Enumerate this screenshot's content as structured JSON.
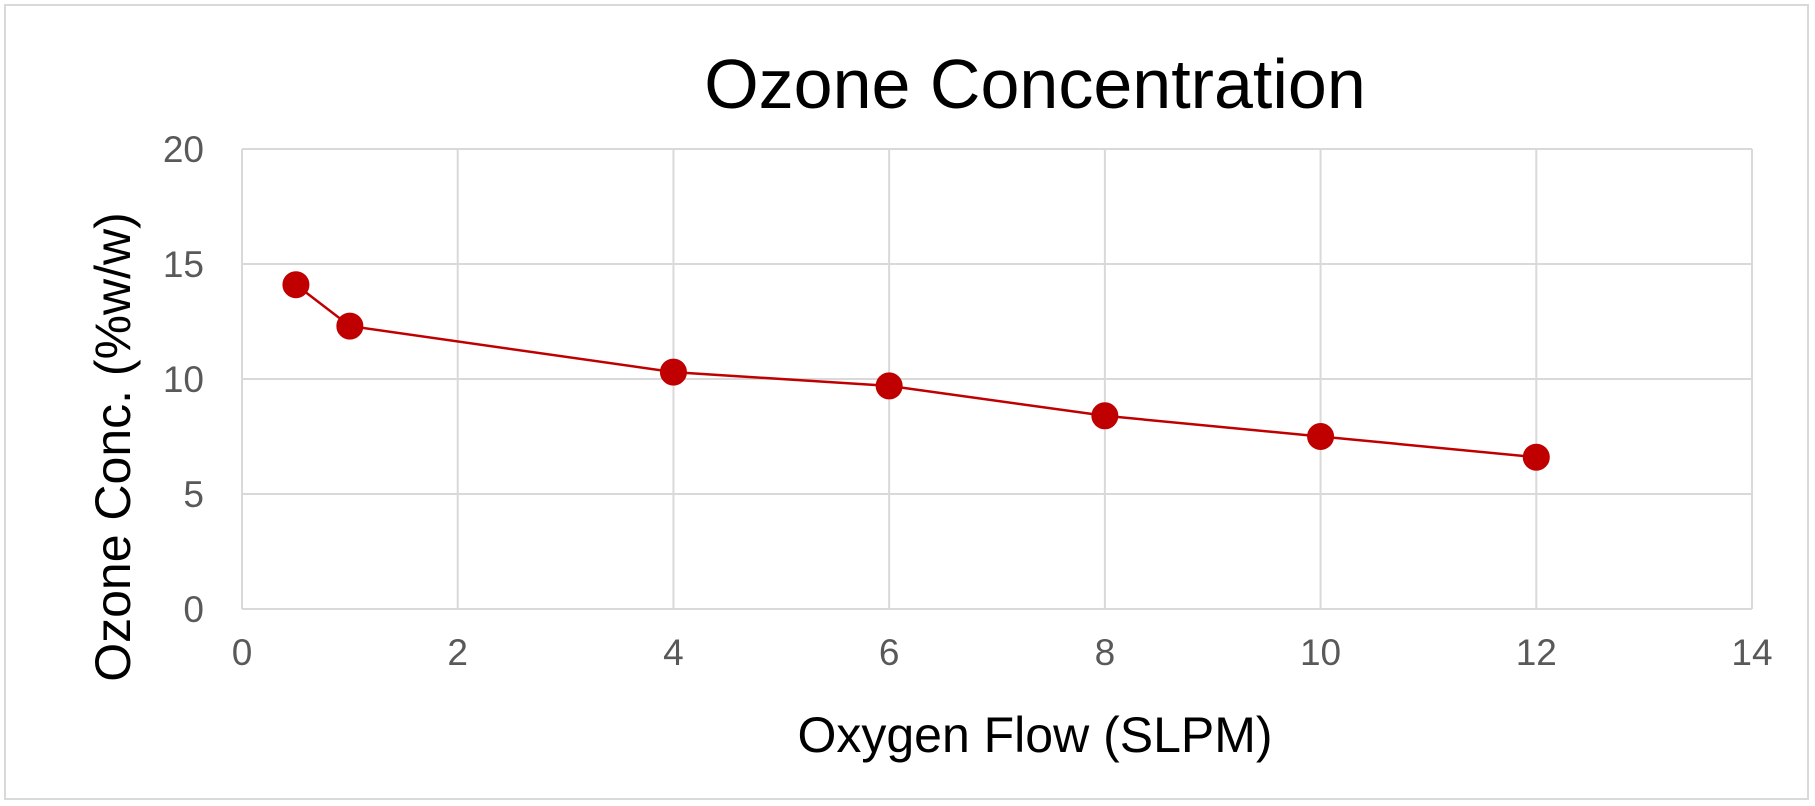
{
  "chart_data": {
    "type": "scatter",
    "title": "Ozone Concentration",
    "xlabel": "Oxygen Flow (SLPM)",
    "ylabel": "Ozone Conc. (%w/w)",
    "xlim": [
      0,
      14
    ],
    "ylim": [
      0,
      20
    ],
    "xticks": [
      "0",
      "2",
      "4",
      "6",
      "8",
      "10",
      "12",
      "14"
    ],
    "yticks": [
      "0",
      "5",
      "10",
      "15",
      "20"
    ],
    "grid": true,
    "legend": "none",
    "series": [
      {
        "x": [
          0.5,
          1,
          4,
          6,
          8,
          10,
          12
        ],
        "y": [
          14.1,
          12.3,
          10.3,
          9.7,
          8.4,
          7.5,
          6.6
        ],
        "color": "#c00000",
        "style": "line-with-markers"
      }
    ]
  }
}
